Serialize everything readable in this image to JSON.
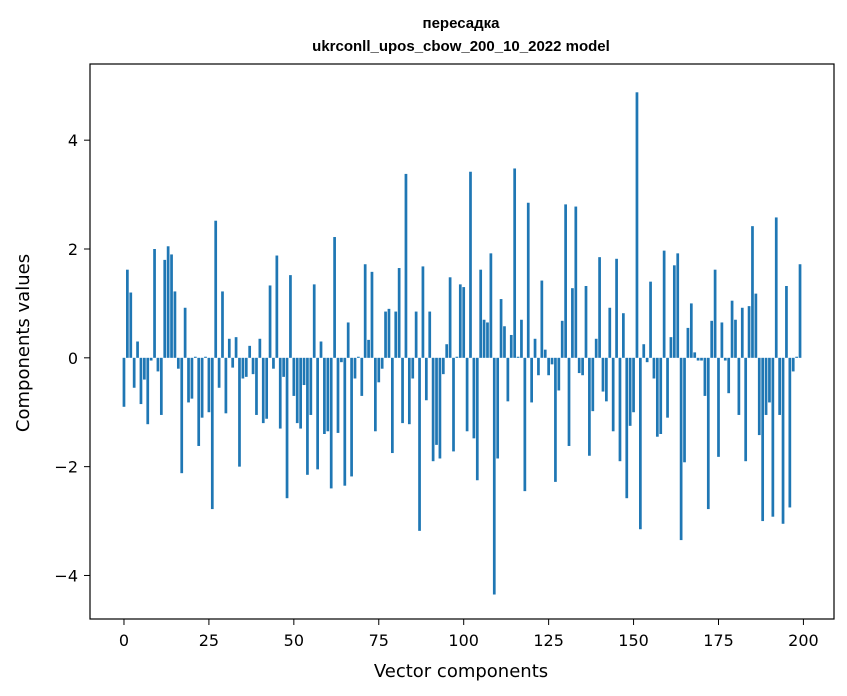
{
  "chart_data": {
    "type": "bar",
    "title_line1": "пересадка",
    "title_line2": "ukrconll_upos_cbow_200_10_2022 model",
    "xlabel": "Vector components",
    "ylabel": "Components values",
    "xlim": [
      -10,
      209
    ],
    "ylim": [
      -4.8,
      5.4
    ],
    "xticks": [
      0,
      25,
      50,
      75,
      100,
      125,
      150,
      175,
      200
    ],
    "yticks": [
      -4,
      -2,
      0,
      2,
      4
    ],
    "ytick_labels": [
      "−4",
      "−2",
      "0",
      "2",
      "4"
    ],
    "bar_color": "#1f77b4",
    "grid": false,
    "values": [
      -0.9,
      1.62,
      1.2,
      -0.55,
      0.3,
      -0.85,
      -0.4,
      -1.22,
      -0.05,
      2.0,
      -0.25,
      -1.05,
      1.8,
      2.05,
      1.9,
      1.22,
      -0.2,
      -2.12,
      0.92,
      -0.82,
      -0.75,
      0.02,
      -1.62,
      -1.1,
      0.02,
      -1.0,
      -2.78,
      2.52,
      -0.55,
      1.22,
      -1.02,
      0.35,
      -0.18,
      0.38,
      -2.0,
      -0.38,
      -0.35,
      0.22,
      -0.3,
      -1.05,
      0.35,
      -1.2,
      -1.12,
      1.33,
      -0.2,
      1.88,
      -1.3,
      -0.35,
      -2.58,
      1.52,
      -0.7,
      -1.2,
      -1.3,
      -0.5,
      -2.15,
      -1.05,
      1.35,
      -2.05,
      0.3,
      -1.4,
      -1.35,
      -2.4,
      2.22,
      -1.38,
      -0.08,
      -2.35,
      0.65,
      -2.18,
      -0.38,
      0.02,
      -0.7,
      1.72,
      0.33,
      1.58,
      -1.35,
      -0.45,
      -0.2,
      0.85,
      0.9,
      -1.75,
      0.85,
      1.65,
      -1.2,
      3.38,
      -1.22,
      -0.38,
      0.85,
      -3.18,
      1.68,
      -0.78,
      0.85,
      -1.9,
      -1.6,
      -1.85,
      -0.3,
      0.25,
      1.48,
      -1.72,
      0.02,
      1.35,
      1.3,
      -1.35,
      3.42,
      -1.48,
      -2.25,
      1.62,
      0.7,
      0.65,
      1.92,
      -4.35,
      -1.85,
      1.08,
      0.58,
      -0.8,
      0.42,
      3.48,
      0.02,
      0.7,
      -2.45,
      2.85,
      -0.82,
      0.35,
      -0.32,
      1.42,
      0.15,
      -0.32,
      -0.12,
      -2.28,
      -0.6,
      0.68,
      2.82,
      -1.62,
      1.28,
      2.78,
      -0.28,
      -0.32,
      1.32,
      -1.8,
      -0.98,
      0.35,
      1.85,
      -0.62,
      -0.8,
      0.92,
      -1.35,
      1.82,
      -1.9,
      0.82,
      -2.58,
      -1.25,
      -1.0,
      4.88,
      -3.15,
      0.25,
      -0.08,
      1.4,
      -0.38,
      -1.45,
      -1.4,
      1.97,
      -1.1,
      0.38,
      1.7,
      1.92,
      -3.35,
      -1.92,
      0.55,
      1.0,
      0.1,
      -0.05,
      -0.05,
      -0.7,
      -2.78,
      0.68,
      1.62,
      -1.82,
      0.65,
      -0.05,
      -0.65,
      1.05,
      0.7,
      -1.05,
      0.92,
      -1.9,
      0.95,
      2.42,
      1.18,
      -1.42,
      -3.0,
      -1.05,
      -0.82,
      -2.92,
      2.58,
      -1.05,
      -3.05,
      1.32,
      -2.75,
      -0.25,
      0.02,
      1.72
    ]
  }
}
